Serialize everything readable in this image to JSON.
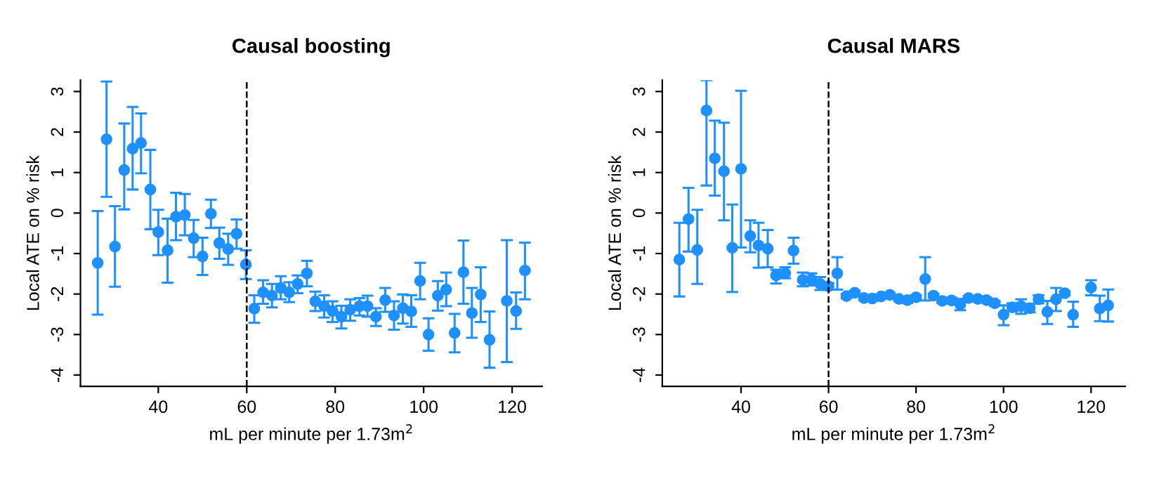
{
  "chart_data": [
    {
      "type": "scatter",
      "title": "Causal boosting",
      "xlabel": "mL per minute per 1.73m$^{2}$",
      "ylabel": "Local ATE on % risk",
      "color": "#1e90ff",
      "marker": "circle",
      "x": [
        26.3,
        28.3,
        30.2,
        32.3,
        34.2,
        36.1,
        38.2,
        40.0,
        42.1,
        44.0,
        46.0,
        48.0,
        50.0,
        51.9,
        53.8,
        55.8,
        57.7,
        59.8,
        61.7,
        63.7,
        65.7,
        67.7,
        69.6,
        71.5,
        73.6,
        75.5,
        77.5,
        79.4,
        81.4,
        83.4,
        85.5,
        87.3,
        89.2,
        91.3,
        93.3,
        95.3,
        97.2,
        99.2,
        101.1,
        103.2,
        105.1,
        107.0,
        109.0,
        110.9,
        112.9,
        114.9,
        118.8,
        120.9,
        122.9
      ],
      "values": [
        -1.23,
        1.82,
        -0.83,
        1.06,
        1.59,
        1.73,
        0.58,
        -0.47,
        -0.92,
        -0.09,
        -0.05,
        -0.62,
        -1.07,
        -0.02,
        -0.74,
        -0.89,
        -0.51,
        -1.27,
        -2.36,
        -1.96,
        -2.04,
        -1.85,
        -1.96,
        -1.75,
        -1.49,
        -2.18,
        -2.3,
        -2.42,
        -2.56,
        -2.39,
        -2.3,
        -2.3,
        -2.56,
        -2.15,
        -2.53,
        -2.35,
        -2.43,
        -1.68,
        -3.0,
        -2.04,
        -1.89,
        -2.96,
        -1.46,
        -2.47,
        -2.01,
        -3.13,
        -2.17,
        -2.42,
        -1.42
      ],
      "errors": [
        [
          -2.51,
          0.05
        ],
        [
          0.4,
          3.25
        ],
        [
          -1.82,
          0.17
        ],
        [
          0.09,
          2.21
        ],
        [
          0.58,
          2.62
        ],
        [
          0.98,
          2.46
        ],
        [
          -0.4,
          1.56
        ],
        [
          -1.04,
          0.08
        ],
        [
          -1.72,
          -0.14
        ],
        [
          -0.67,
          0.5
        ],
        [
          -0.55,
          0.47
        ],
        [
          -1.09,
          -0.17
        ],
        [
          -1.53,
          -0.61
        ],
        [
          -0.37,
          0.33
        ],
        [
          -1.13,
          -0.36
        ],
        [
          -1.28,
          -0.51
        ],
        [
          -0.88,
          -0.16
        ],
        [
          -1.63,
          -0.92
        ],
        [
          -2.71,
          -2.03
        ],
        [
          -2.24,
          -1.66
        ],
        [
          -2.33,
          -1.75
        ],
        [
          -2.13,
          -1.56
        ],
        [
          -2.2,
          -1.71
        ],
        [
          -1.98,
          -1.54
        ],
        [
          -1.81,
          -1.18
        ],
        [
          -2.42,
          -1.94
        ],
        [
          -2.58,
          -2.03
        ],
        [
          -2.69,
          -2.18
        ],
        [
          -2.85,
          -2.29
        ],
        [
          -2.66,
          -2.13
        ],
        [
          -2.53,
          -2.1
        ],
        [
          -2.56,
          -2.04
        ],
        [
          -2.79,
          -2.35
        ],
        [
          -2.44,
          -1.85
        ],
        [
          -2.88,
          -2.18
        ],
        [
          -2.73,
          -2.01
        ],
        [
          -2.81,
          -2.03
        ],
        [
          -2.13,
          -1.23
        ],
        [
          -3.4,
          -2.6
        ],
        [
          -2.41,
          -1.68
        ],
        [
          -2.3,
          -1.47
        ],
        [
          -3.44,
          -2.49
        ],
        [
          -2.24,
          -0.68
        ],
        [
          -3.08,
          -1.85
        ],
        [
          -2.69,
          -1.34
        ],
        [
          -3.82,
          -2.43
        ],
        [
          -3.68,
          -0.67
        ],
        [
          -2.86,
          -1.96
        ],
        [
          -2.13,
          -0.73
        ]
      ],
      "xlim": [
        22.4,
        126.8
      ],
      "ylim": [
        -4.28,
        3.28
      ],
      "xticks": [
        40,
        60,
        80,
        100,
        120
      ],
      "yticks": [
        -4,
        -3,
        -2,
        -1,
        0,
        1,
        2,
        3
      ],
      "ref_lines": [
        {
          "axis": "x",
          "value": 60,
          "color": "#000000",
          "line_style": "dashed"
        }
      ]
    },
    {
      "type": "scatter",
      "title": "Causal MARS",
      "xlabel": "mL per minute per 1.73m$^{2}$",
      "ylabel": "Local ATE on % risk",
      "color": "#1e90ff",
      "marker": "circle",
      "x": [
        25.9,
        28.0,
        30.0,
        32.1,
        34.0,
        36.1,
        38.0,
        40.0,
        42.1,
        44.0,
        46.1,
        48.0,
        50.1,
        52.0,
        54.1,
        56.1,
        58.1,
        60.0,
        62.0,
        64.1,
        66.0,
        68.1,
        70.0,
        72.0,
        74.0,
        76.1,
        78.0,
        80.0,
        82.1,
        84.0,
        86.0,
        88.1,
        90.1,
        92.0,
        94.1,
        96.1,
        98.0,
        100.0,
        102.0,
        104.0,
        106.0,
        108.0,
        110.0,
        112.0,
        114.0,
        115.9,
        120.0,
        122.0,
        123.9
      ],
      "values": [
        -1.15,
        -0.15,
        -0.91,
        2.53,
        1.35,
        1.03,
        -0.86,
        1.09,
        -0.57,
        -0.8,
        -0.88,
        -1.54,
        -1.49,
        -0.93,
        -1.65,
        -1.64,
        -1.75,
        -1.81,
        -1.49,
        -2.05,
        -1.97,
        -2.1,
        -2.11,
        -2.06,
        -2.02,
        -2.12,
        -2.15,
        -2.08,
        -1.63,
        -2.04,
        -2.17,
        -2.16,
        -2.26,
        -2.1,
        -2.12,
        -2.15,
        -2.23,
        -2.51,
        -2.33,
        -2.3,
        -2.35,
        -2.13,
        -2.44,
        -2.13,
        -1.98,
        -2.51,
        -1.84,
        -2.36,
        -2.28
      ],
      "errors": [
        [
          -2.06,
          -0.24
        ],
        [
          -0.95,
          0.62
        ],
        [
          -1.75,
          0.08
        ],
        [
          0.68,
          3.28
        ],
        [
          0.43,
          2.28
        ],
        [
          -0.18,
          2.23
        ],
        [
          -1.95,
          0.21
        ],
        [
          -0.85,
          3.02
        ],
        [
          -0.97,
          -0.18
        ],
        [
          -1.35,
          -0.24
        ],
        [
          -1.34,
          -0.42
        ],
        [
          -1.74,
          -1.4
        ],
        [
          -1.61,
          -1.34
        ],
        [
          -1.25,
          -0.61
        ],
        [
          -1.81,
          -1.47
        ],
        [
          -1.79,
          -1.49
        ],
        [
          -1.9,
          -1.58
        ],
        0.08,
        [
          -1.89,
          -1.09
        ],
        0.05,
        0.05,
        0.05,
        0.06,
        0.05,
        0.05,
        0.05,
        0.07,
        0.05,
        [
          -2.16,
          -1.09
        ],
        0.05,
        0.05,
        0.07,
        [
          -2.4,
          -2.12
        ],
        0.05,
        0.06,
        0.06,
        0.06,
        [
          -2.77,
          -2.28
        ],
        0.1,
        [
          -2.49,
          -2.13
        ],
        0.1,
        0.1,
        [
          -2.74,
          -2.17
        ],
        [
          -2.42,
          -1.85
        ],
        0.05,
        [
          -2.81,
          -2.19
        ],
        [
          -2.03,
          -1.66
        ],
        [
          -2.67,
          -2.04
        ],
        [
          -2.68,
          -1.89
        ]
      ],
      "xlim": [
        22.0,
        127.8
      ],
      "ylim": [
        -4.28,
        3.28
      ],
      "xticks": [
        40,
        60,
        80,
        100,
        120
      ],
      "yticks": [
        -4,
        -3,
        -2,
        -1,
        0,
        1,
        2,
        3
      ],
      "ref_lines": [
        {
          "axis": "x",
          "value": 60,
          "color": "#000000",
          "line_style": "dashed"
        }
      ]
    }
  ]
}
